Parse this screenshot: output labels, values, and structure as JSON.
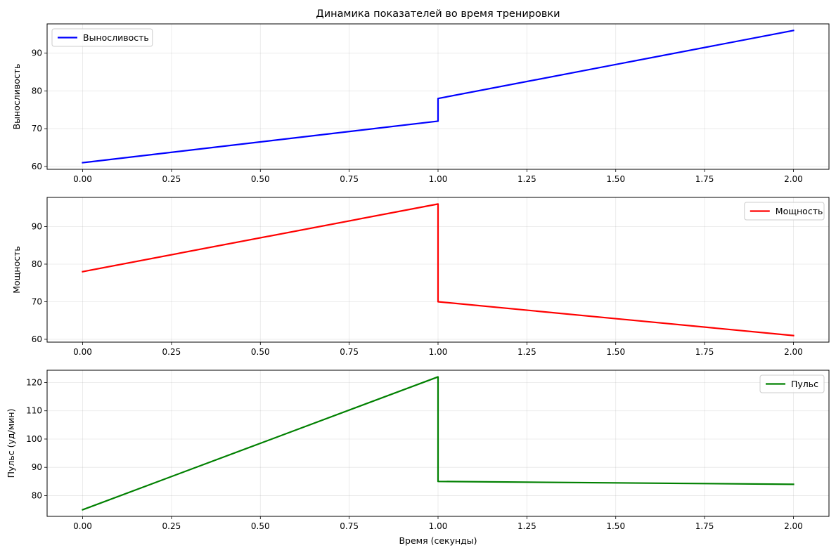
{
  "chart_data": [
    {
      "type": "line",
      "title": "Динамика показателей во время тренировки",
      "xlabel": "",
      "ylabel": "Выносливость",
      "xlim": [
        -0.1,
        2.1
      ],
      "ylim": [
        59.25,
        97.75
      ],
      "xticks": [
        0.0,
        0.25,
        0.5,
        0.75,
        1.0,
        1.25,
        1.5,
        1.75,
        2.0
      ],
      "xtick_labels": [
        "0.00",
        "0.25",
        "0.50",
        "0.75",
        "1.00",
        "1.25",
        "1.50",
        "1.75",
        "2.00"
      ],
      "yticks": [
        60,
        70,
        80,
        90
      ],
      "grid": true,
      "legend_position": "upper-left",
      "series": [
        {
          "name": "Выносливость",
          "color": "#0000ff",
          "x": [
            0,
            1,
            1,
            2
          ],
          "y": [
            61,
            72,
            78,
            96
          ]
        }
      ]
    },
    {
      "type": "line",
      "title": "",
      "xlabel": "",
      "ylabel": "Мощность",
      "xlim": [
        -0.1,
        2.1
      ],
      "ylim": [
        59.25,
        97.75
      ],
      "xticks": [
        0.0,
        0.25,
        0.5,
        0.75,
        1.0,
        1.25,
        1.5,
        1.75,
        2.0
      ],
      "xtick_labels": [
        "0.00",
        "0.25",
        "0.50",
        "0.75",
        "1.00",
        "1.25",
        "1.50",
        "1.75",
        "2.00"
      ],
      "yticks": [
        60,
        70,
        80,
        90
      ],
      "grid": true,
      "legend_position": "upper-right",
      "series": [
        {
          "name": "Мощность",
          "color": "#ff0000",
          "x": [
            0,
            1,
            1,
            2
          ],
          "y": [
            78,
            96,
            70,
            61
          ]
        }
      ]
    },
    {
      "type": "line",
      "title": "",
      "xlabel": "Время (секунды)",
      "ylabel": "Пульс (уд/мин)",
      "xlim": [
        -0.1,
        2.1
      ],
      "ylim": [
        72.65,
        124.35
      ],
      "xticks": [
        0.0,
        0.25,
        0.5,
        0.75,
        1.0,
        1.25,
        1.5,
        1.75,
        2.0
      ],
      "xtick_labels": [
        "0.00",
        "0.25",
        "0.50",
        "0.75",
        "1.00",
        "1.25",
        "1.50",
        "1.75",
        "2.00"
      ],
      "yticks": [
        80,
        90,
        100,
        110,
        120
      ],
      "grid": true,
      "legend_position": "upper-right",
      "series": [
        {
          "name": "Пульс",
          "color": "#008000",
          "x": [
            0,
            1,
            1,
            2
          ],
          "y": [
            75,
            122,
            85,
            84
          ]
        }
      ]
    }
  ]
}
